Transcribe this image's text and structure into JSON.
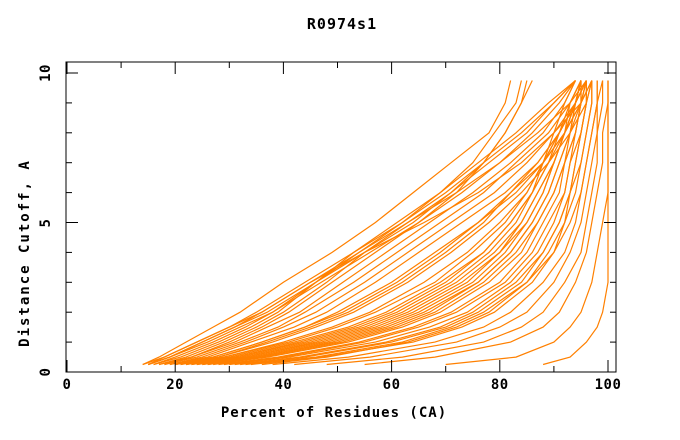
{
  "title": "R0974s1",
  "colors": {
    "curve": "#ff8000",
    "frame": "#000000",
    "background": "#ffffff",
    "text": "#000000"
  },
  "chart_data": {
    "type": "line",
    "title": "R0974s1",
    "xlabel": "Percent of Residues (CA)",
    "ylabel": "Distance Cutoff, A",
    "xlim": [
      0,
      101.5
    ],
    "ylim": [
      0,
      10.35
    ],
    "x_ticks_major": [
      0,
      20,
      40,
      60,
      80,
      100
    ],
    "x_ticks_minor": [
      10,
      30,
      50,
      70,
      90
    ],
    "y_ticks_major": [
      0,
      5,
      10
    ],
    "y_ticks_minor": [
      1,
      2,
      3,
      4,
      6,
      7,
      8,
      9
    ],
    "grid": false,
    "legend": "none",
    "line_color": "#ff8000",
    "cutoffs": [
      0.25,
      0.5,
      1,
      1.5,
      2,
      3,
      4,
      5,
      6,
      7,
      8,
      9,
      9.75
    ],
    "series_percents": [
      [
        88,
        93,
        96,
        98,
        99,
        100,
        100,
        100,
        100,
        100,
        100,
        100,
        100
      ],
      [
        70,
        83,
        90,
        93,
        95,
        97,
        98,
        99,
        100,
        100,
        100,
        100,
        100
      ],
      [
        55,
        68,
        82,
        88,
        91,
        94,
        96,
        97,
        98,
        99,
        99,
        100,
        100
      ],
      [
        48,
        62,
        77,
        84,
        88,
        92,
        95,
        96,
        97,
        98,
        98,
        99,
        99
      ],
      [
        42,
        56,
        72,
        80,
        85,
        90,
        93,
        95,
        96,
        97,
        98,
        98,
        99
      ],
      [
        38,
        52,
        68,
        77,
        82,
        88,
        92,
        94,
        95,
        96,
        97,
        98,
        98
      ],
      [
        34,
        47,
        64,
        73,
        79,
        86,
        90,
        92,
        94,
        95,
        96,
        97,
        97
      ],
      [
        32,
        44,
        60,
        70,
        76,
        84,
        88,
        91,
        93,
        94,
        95,
        96,
        96
      ],
      [
        30,
        41,
        57,
        67,
        74,
        82,
        87,
        90,
        92,
        93,
        94,
        95,
        96
      ],
      [
        28,
        39,
        54,
        64,
        71,
        80,
        85,
        88,
        91,
        92,
        94,
        95,
        95
      ],
      [
        27,
        37,
        52,
        62,
        69,
        78,
        84,
        87,
        90,
        92,
        93,
        94,
        95
      ],
      [
        26,
        35,
        50,
        60,
        67,
        76,
        82,
        86,
        89,
        91,
        93,
        94,
        95
      ],
      [
        25,
        34,
        48,
        58,
        65,
        75,
        81,
        85,
        88,
        90,
        92,
        93,
        95
      ],
      [
        24,
        33,
        46,
        56,
        63,
        73,
        80,
        84,
        87,
        90,
        92,
        94,
        96
      ],
      [
        23,
        31,
        44,
        54,
        61,
        71,
        78,
        83,
        86,
        89,
        91,
        94,
        96
      ],
      [
        22,
        30,
        42,
        52,
        59,
        69,
        77,
        82,
        86,
        88,
        91,
        93,
        95
      ],
      [
        22,
        29,
        41,
        50,
        57,
        68,
        75,
        81,
        85,
        88,
        90,
        92,
        94
      ],
      [
        21,
        28,
        38,
        46,
        53,
        63,
        71,
        78,
        84,
        89,
        93,
        96,
        97
      ],
      [
        20,
        27,
        36,
        44,
        50,
        60,
        68,
        76,
        83,
        88,
        92,
        95,
        96
      ],
      [
        19,
        26,
        34,
        42,
        48,
        57,
        65,
        73,
        81,
        87,
        91,
        94,
        96
      ],
      [
        19,
        25,
        33,
        40,
        46,
        55,
        63,
        71,
        79,
        85,
        90,
        94,
        95
      ],
      [
        18,
        24,
        32,
        39,
        44,
        53,
        61,
        69,
        77,
        83,
        89,
        93,
        95
      ],
      [
        18,
        23,
        31,
        37,
        43,
        51,
        59,
        67,
        75,
        82,
        88,
        92,
        94
      ],
      [
        17,
        23,
        30,
        36,
        41,
        49,
        57,
        65,
        73,
        80,
        86,
        91,
        94
      ],
      [
        17,
        22,
        29,
        35,
        40,
        48,
        55,
        63,
        71,
        78,
        85,
        90,
        94
      ],
      [
        16,
        21,
        28,
        34,
        39,
        46,
        53,
        61,
        69,
        76,
        83,
        89,
        94
      ],
      [
        15,
        19,
        26,
        32,
        38,
        47,
        56,
        65,
        72,
        77,
        81,
        84,
        85
      ],
      [
        15,
        18,
        24,
        30,
        35,
        44,
        53,
        62,
        69,
        75,
        79,
        83,
        84
      ],
      [
        14,
        17,
        22,
        27,
        32,
        40,
        49,
        57,
        64,
        71,
        78,
        81,
        82
      ],
      [
        36,
        48,
        63,
        72,
        78,
        85,
        90,
        93,
        95,
        96,
        97,
        98,
        98
      ],
      [
        29,
        40,
        55,
        65,
        72,
        81,
        86,
        89,
        92,
        93,
        95,
        96,
        96
      ],
      [
        25,
        35,
        49,
        59,
        66,
        76,
        82,
        86,
        89,
        91,
        93,
        95,
        95
      ],
      [
        23,
        32,
        45,
        55,
        62,
        72,
        79,
        84,
        87,
        90,
        92,
        94,
        95
      ],
      [
        21,
        29,
        40,
        49,
        56,
        66,
        74,
        80,
        85,
        88,
        91,
        94,
        95
      ],
      [
        20,
        28,
        37,
        45,
        52,
        62,
        70,
        77,
        82,
        87,
        91,
        94,
        96
      ],
      [
        26,
        36,
        51,
        61,
        68,
        77,
        83,
        87,
        90,
        92,
        94,
        95,
        96
      ],
      [
        31,
        43,
        59,
        69,
        75,
        83,
        88,
        91,
        93,
        94,
        95,
        96,
        97
      ],
      [
        33,
        46,
        62,
        71,
        77,
        85,
        89,
        92,
        93,
        95,
        96,
        97,
        97
      ],
      [
        24,
        33,
        47,
        57,
        64,
        74,
        80,
        85,
        88,
        90,
        92,
        94,
        95
      ],
      [
        22,
        31,
        43,
        53,
        60,
        70,
        77,
        82,
        86,
        89,
        92,
        94,
        95
      ],
      [
        20,
        27,
        36,
        44,
        51,
        61,
        69,
        76,
        82,
        88,
        92,
        95,
        97
      ],
      [
        16,
        20,
        27,
        33,
        38,
        46,
        54,
        62,
        70,
        77,
        84,
        90,
        94
      ],
      [
        15,
        19,
        25,
        31,
        36,
        45,
        54,
        63,
        72,
        80,
        87,
        93,
        96
      ],
      [
        14,
        18,
        24,
        30,
        36,
        45,
        55,
        66,
        76,
        84,
        90,
        95,
        97
      ],
      [
        15,
        19,
        25,
        31,
        37,
        46,
        55,
        64,
        71,
        77,
        81,
        84,
        86
      ]
    ]
  }
}
